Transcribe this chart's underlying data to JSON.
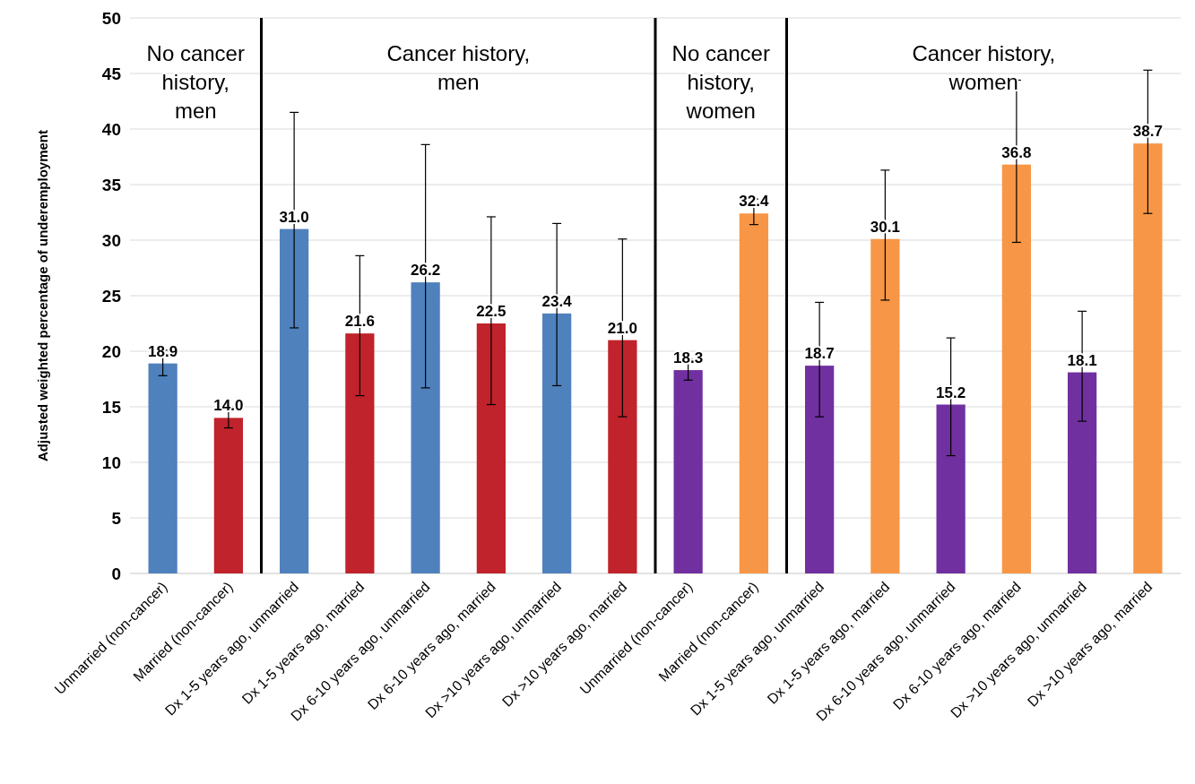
{
  "chart_data": {
    "type": "bar",
    "ylabel": "Adjusted weighted percentage of underemployment",
    "categories": [
      "Unmarried (non-cancer)",
      "Married (non-cancer)",
      "Dx 1-5 years ago, unmarried",
      "Dx 1-5 years ago, married",
      "Dx 6-10 years ago, unmarried",
      "Dx 6-10 years ago, married",
      "Dx >10 years ago, unmarried",
      "Dx >10 years ago, married",
      "Unmarried (non-cancer)",
      "Married (non-cancer)",
      "Dx 1-5 years ago, unmarried",
      "Dx 1-5 years ago, married",
      "Dx 6-10 years ago, unmarried",
      "Dx 6-10 years ago, married",
      "Dx >10 years ago, unmarried",
      "Dx >10 years ago, married"
    ],
    "values": [
      18.9,
      14.0,
      31.0,
      21.6,
      26.2,
      22.5,
      23.4,
      21.0,
      18.3,
      32.4,
      18.7,
      30.1,
      15.2,
      36.8,
      18.1,
      38.7
    ],
    "colors": [
      "#4f81bd",
      "#c0232b",
      "#4f81bd",
      "#c0232b",
      "#4f81bd",
      "#c0232b",
      "#4f81bd",
      "#c0232b",
      "#7030a0",
      "#f79646",
      "#7030a0",
      "#f79646",
      "#7030a0",
      "#f79646",
      "#7030a0",
      "#f79646"
    ],
    "errors": [
      [
        17.8,
        20.1
      ],
      [
        13.1,
        15.0
      ],
      [
        22.1,
        41.5
      ],
      [
        16.0,
        28.6
      ],
      [
        16.7,
        38.6
      ],
      [
        15.2,
        32.1
      ],
      [
        16.9,
        31.5
      ],
      [
        14.1,
        30.1
      ],
      [
        17.4,
        19.3
      ],
      [
        31.4,
        33.7
      ],
      [
        14.1,
        24.4
      ],
      [
        24.6,
        36.3
      ],
      [
        10.6,
        21.2
      ],
      [
        29.8,
        44.4
      ],
      [
        13.7,
        23.6
      ],
      [
        32.4,
        45.3
      ]
    ],
    "value_labels": [
      "18.9",
      "14.0",
      "31.0",
      "21.6",
      "26.2",
      "22.5",
      "23.4",
      "21.0",
      "18.3",
      "32.4",
      "18.7",
      "30.1",
      "15.2",
      "36.8",
      "18.1",
      "38.7"
    ],
    "ylim": [
      0,
      50
    ],
    "yticks": [
      0,
      5,
      10,
      15,
      20,
      25,
      30,
      35,
      40,
      45,
      50
    ],
    "grid": "y",
    "annotations": [
      "No cancer history, men",
      "Cancer history, men",
      "No cancer history, women",
      "Cancer history, women"
    ]
  }
}
